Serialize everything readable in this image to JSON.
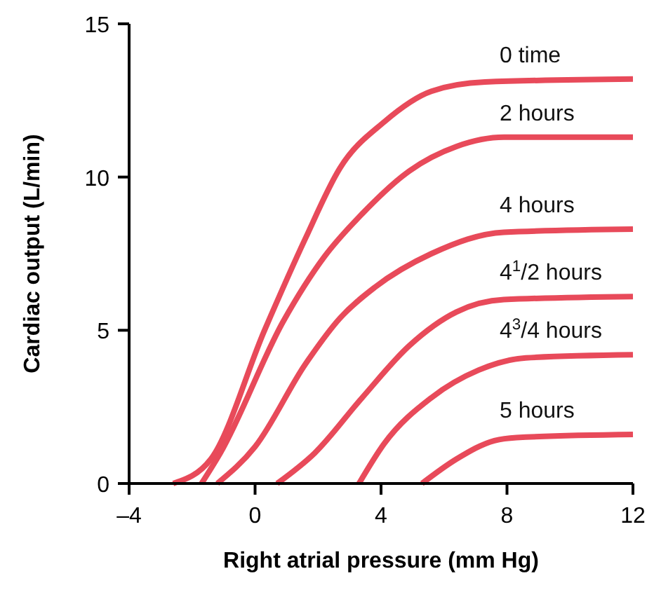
{
  "chart_data": {
    "type": "line",
    "xlabel": "Right atrial pressure (mm Hg)",
    "ylabel": "Cardiac output (L/min)",
    "xlim": [
      -4,
      12
    ],
    "xticks": [
      {
        "value": -4,
        "label": "–4"
      },
      0,
      4,
      8,
      12
    ],
    "ylim": [
      0,
      15
    ],
    "yticks": [
      0,
      5,
      10,
      15
    ],
    "grid": false,
    "marker": "none",
    "line_style": "solid",
    "series": [
      {
        "name": "0 time",
        "color": "#e84a5a",
        "x": [
          -2.6,
          -1.4,
          0.3,
          1.6,
          2.7,
          4.1,
          5.6,
          7.3,
          12
        ],
        "values": [
          0,
          0.8,
          5,
          8,
          10.3,
          11.8,
          12.8,
          13.1,
          13.2
        ]
      },
      {
        "name": "2 hours",
        "color": "#e84a5a",
        "x": [
          -1.7,
          -1.1,
          0.9,
          2.2,
          3.4,
          4.9,
          6.4,
          7.9,
          12
        ],
        "values": [
          0,
          1,
          5.3,
          7.4,
          8.8,
          10.2,
          11,
          11.3,
          11.3
        ]
      },
      {
        "name": "4 hours",
        "color": "#e84a5a",
        "x": [
          -1.2,
          0,
          1.6,
          2.7,
          3.8,
          5.6,
          7.9,
          12
        ],
        "values": [
          0,
          1.2,
          3.9,
          5.4,
          6.4,
          7.5,
          8.2,
          8.3
        ]
      },
      {
        "name": "4$^{1}$/2 hours",
        "color": "#e84a5a",
        "x": [
          0.7,
          1.9,
          3.4,
          4.9,
          6.4,
          7.9,
          12
        ],
        "values": [
          0,
          1,
          2.8,
          4.5,
          5.6,
          6,
          6.1
        ]
      },
      {
        "name": "4$^{3}$/4 hours",
        "color": "#e84a5a",
        "x": [
          3.3,
          4.1,
          5.6,
          7.1,
          8.6,
          12
        ],
        "values": [
          0,
          1.3,
          2.8,
          3.7,
          4.1,
          4.2
        ]
      },
      {
        "name": "5 hours",
        "color": "#e84a5a",
        "x": [
          5.3,
          6.4,
          7.6,
          8.3,
          12
        ],
        "values": [
          0,
          0.8,
          1.4,
          1.5,
          1.6
        ]
      }
    ]
  }
}
